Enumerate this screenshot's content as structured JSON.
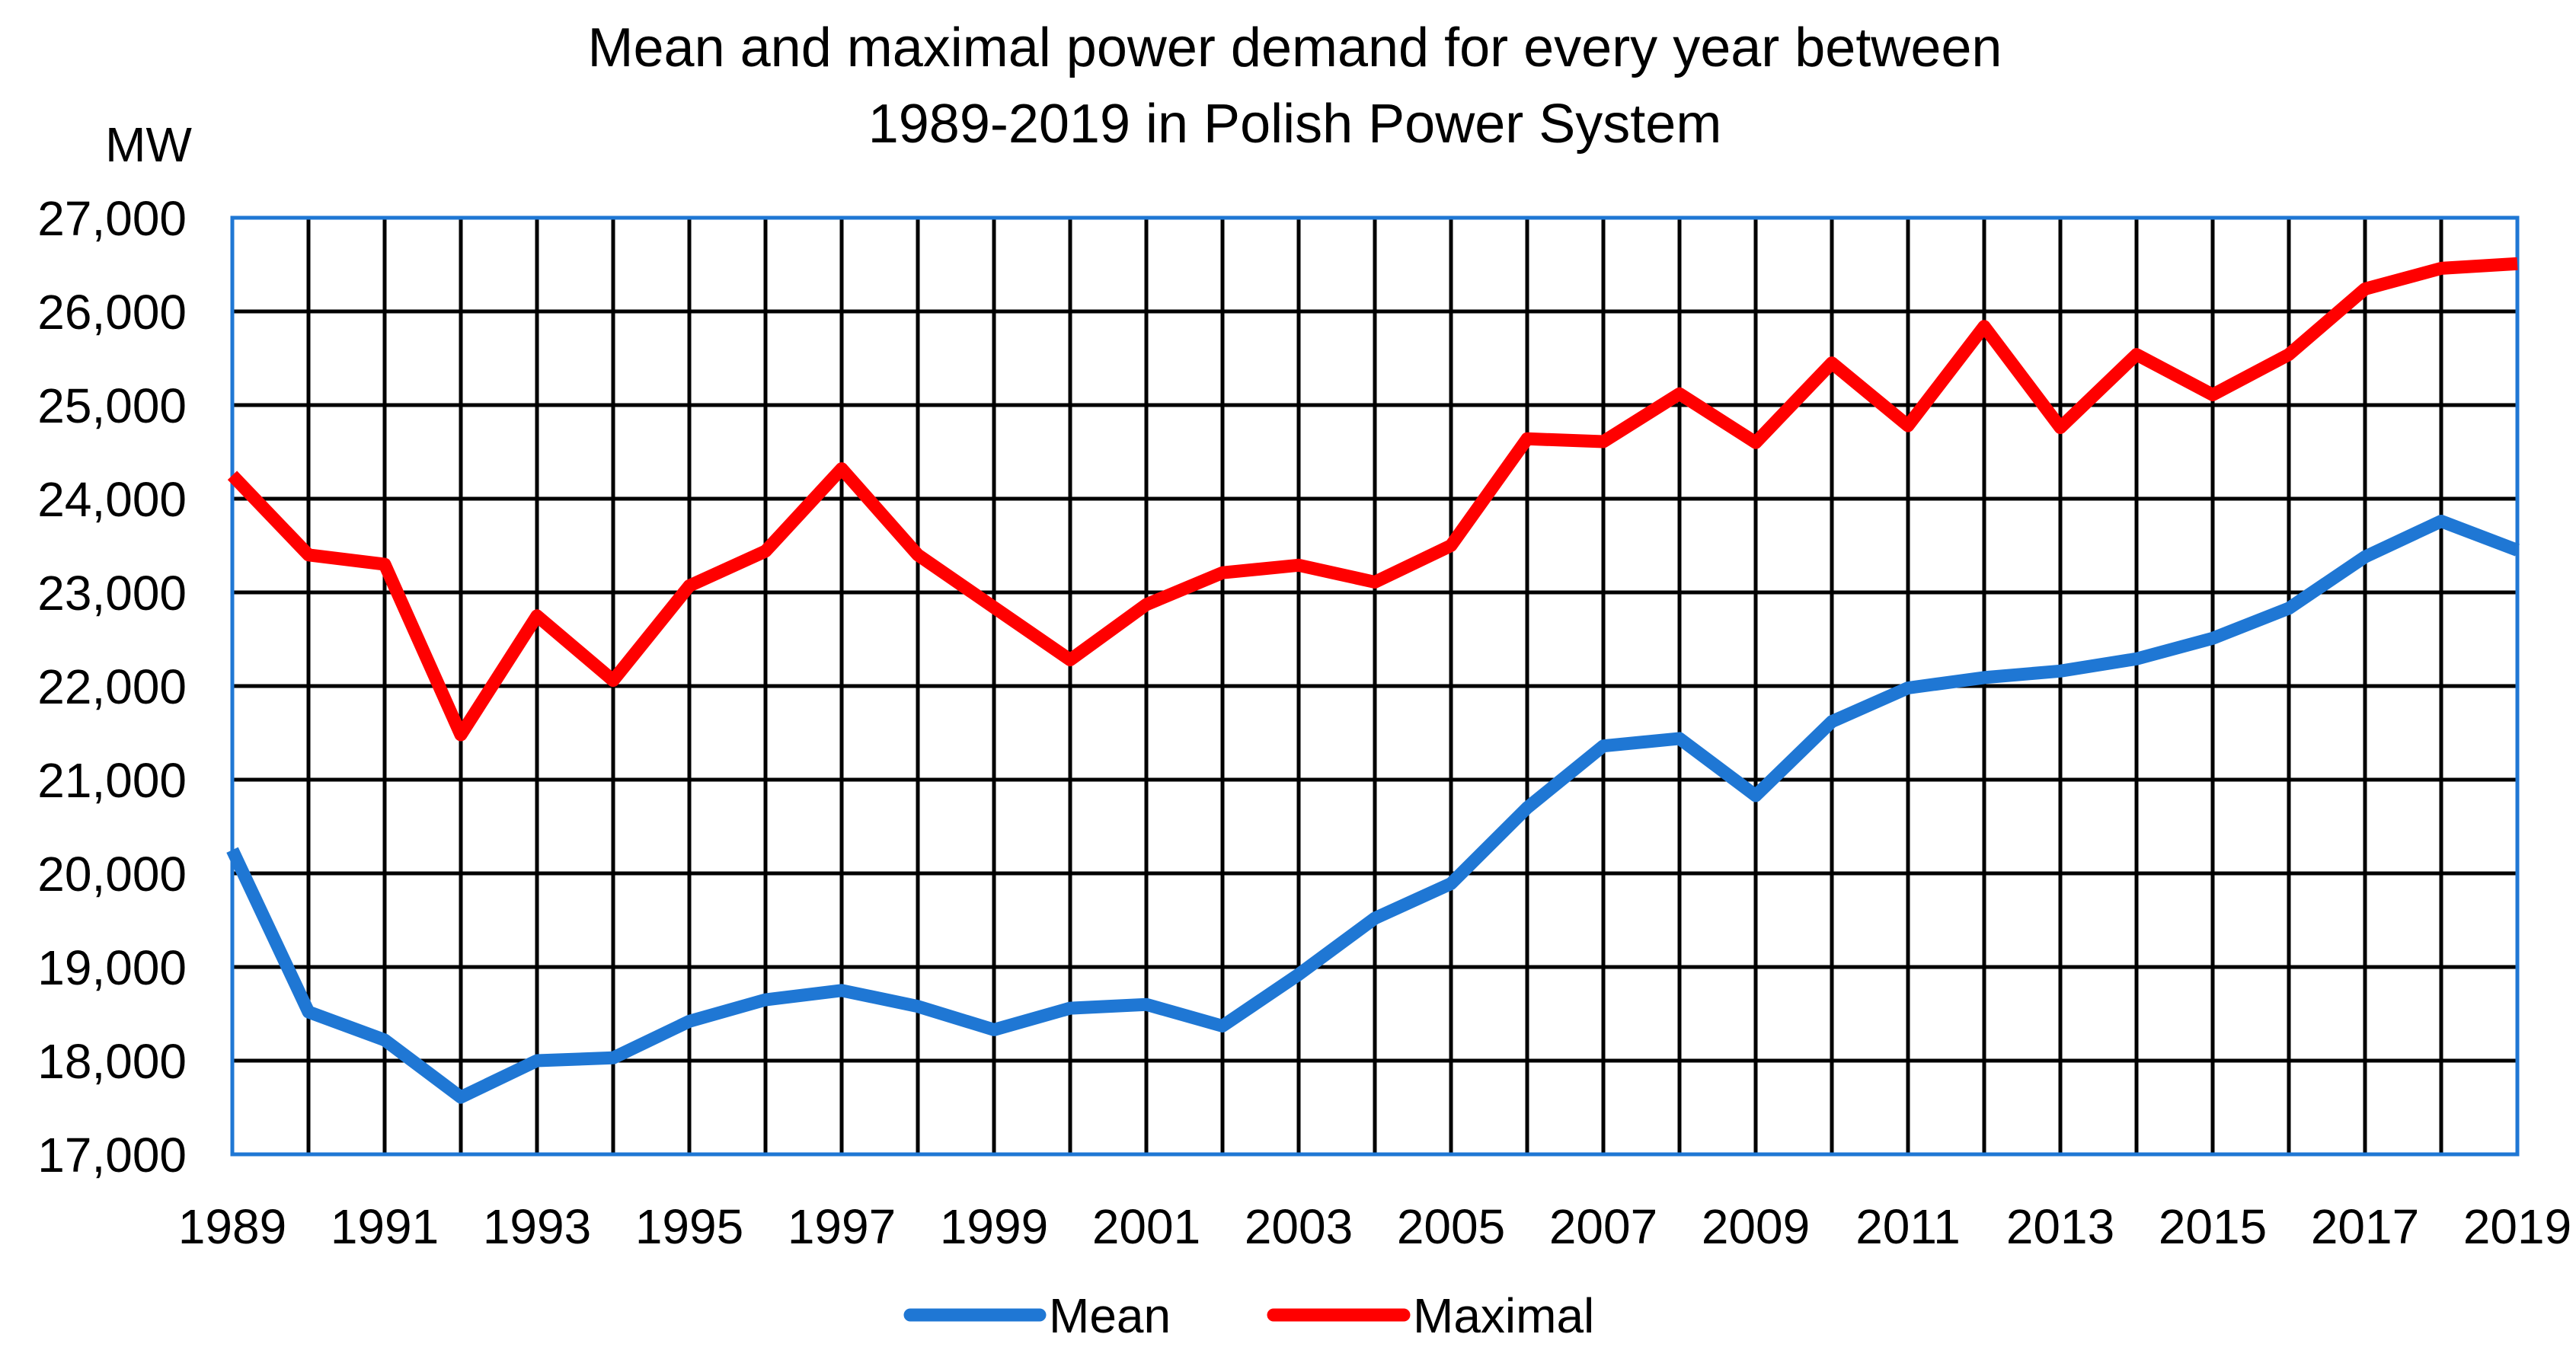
{
  "chart_data": {
    "type": "line",
    "title_lines": [
      "Mean and maximal power demand for every year between",
      "1989-2019 in Polish Power System"
    ],
    "ylabel": "MW",
    "xlabel": "",
    "ylim": [
      17000,
      27000
    ],
    "y_ticks": [
      {
        "value": 17000,
        "label": "17,000"
      },
      {
        "value": 18000,
        "label": "18,000"
      },
      {
        "value": 19000,
        "label": "19,000"
      },
      {
        "value": 20000,
        "label": "20,000"
      },
      {
        "value": 21000,
        "label": "21,000"
      },
      {
        "value": 22000,
        "label": "22,000"
      },
      {
        "value": 23000,
        "label": "23,000"
      },
      {
        "value": 24000,
        "label": "24,000"
      },
      {
        "value": 25000,
        "label": "25,000"
      },
      {
        "value": 26000,
        "label": "26,000"
      },
      {
        "value": 27000,
        "label": "27,000"
      }
    ],
    "x": [
      1989,
      1990,
      1991,
      1992,
      1993,
      1994,
      1995,
      1996,
      1997,
      1998,
      1999,
      2000,
      2001,
      2002,
      2003,
      2004,
      2005,
      2006,
      2007,
      2008,
      2009,
      2010,
      2011,
      2012,
      2013,
      2014,
      2015,
      2016,
      2017,
      2018,
      2019
    ],
    "x_tick_labels": [
      "1989",
      "1991",
      "1993",
      "1995",
      "1997",
      "1999",
      "2001",
      "2003",
      "2005",
      "2007",
      "2009",
      "2011",
      "2013",
      "2015",
      "2017",
      "2019"
    ],
    "grid": true,
    "legend_position": "bottom-center",
    "series": [
      {
        "name": "Mean",
        "color": "#1f77d4",
        "values": [
          20250,
          18520,
          18220,
          17610,
          18000,
          18030,
          18420,
          18650,
          18750,
          18580,
          18330,
          18560,
          18600,
          18370,
          18920,
          19520,
          19890,
          20700,
          21360,
          21440,
          20830,
          21620,
          21980,
          22090,
          22160,
          22290,
          22510,
          22830,
          23380,
          23760,
          23450
        ]
      },
      {
        "name": "Maximal",
        "color": "#ff0000",
        "values": [
          24250,
          23400,
          23300,
          21480,
          22750,
          22060,
          23070,
          23440,
          24320,
          23400,
          22840,
          22280,
          22870,
          23210,
          23290,
          23110,
          23500,
          24640,
          24610,
          25120,
          24600,
          25450,
          24780,
          25840,
          24760,
          25540,
          25110,
          25540,
          26240,
          26460,
          26510
        ]
      }
    ]
  }
}
